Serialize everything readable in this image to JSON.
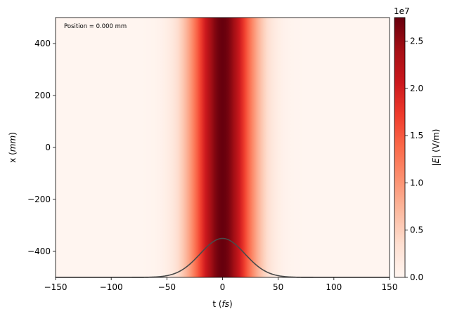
{
  "chart_data": {
    "type": "heatmap",
    "annotation": "Position = 0.000 mm",
    "xlabel": {
      "text": "t (",
      "var": "fs",
      "close": ")"
    },
    "ylabel": {
      "text": "x (",
      "var": "mm",
      "close": ")"
    },
    "xlim": [
      -150,
      150
    ],
    "ylim": [
      -500,
      500
    ],
    "x_ticks": [
      -150,
      -100,
      -50,
      0,
      50,
      100,
      150
    ],
    "x_tick_labels": [
      "−150",
      "−100",
      "−50",
      "0",
      "50",
      "100",
      "150"
    ],
    "y_ticks": [
      -400,
      -200,
      0,
      200,
      400
    ],
    "y_tick_labels": [
      "−400",
      "−200",
      "0",
      "200",
      "400"
    ],
    "colorbar": {
      "label_var": "|E|",
      "label_unit": "(V/m)",
      "scale_label": "1e7",
      "cmap": "Reds",
      "vmin": 0,
      "vmax": 27500000,
      "ticks": [
        0,
        5000000,
        10000000,
        15000000,
        20000000,
        25000000
      ],
      "tick_labels": [
        "0.0",
        "0.5",
        "1.0",
        "1.5",
        "2.0",
        "2.5"
      ]
    },
    "field": {
      "profile": "gaussian",
      "peak_amplitude": 27500000,
      "center_t": 0,
      "sigma_t": 20
    },
    "overlay_line": {
      "color": "#4a4a4a",
      "baseline_y": -500,
      "peak_y": -350,
      "center_t": 0,
      "sigma_t": 20
    },
    "colors": {
      "reds_stops": [
        "#fff5f0",
        "#fee0d2",
        "#fcbba1",
        "#fc9272",
        "#fb6a4a",
        "#ef3b2c",
        "#cb181d",
        "#a50f15",
        "#67000d"
      ]
    }
  }
}
